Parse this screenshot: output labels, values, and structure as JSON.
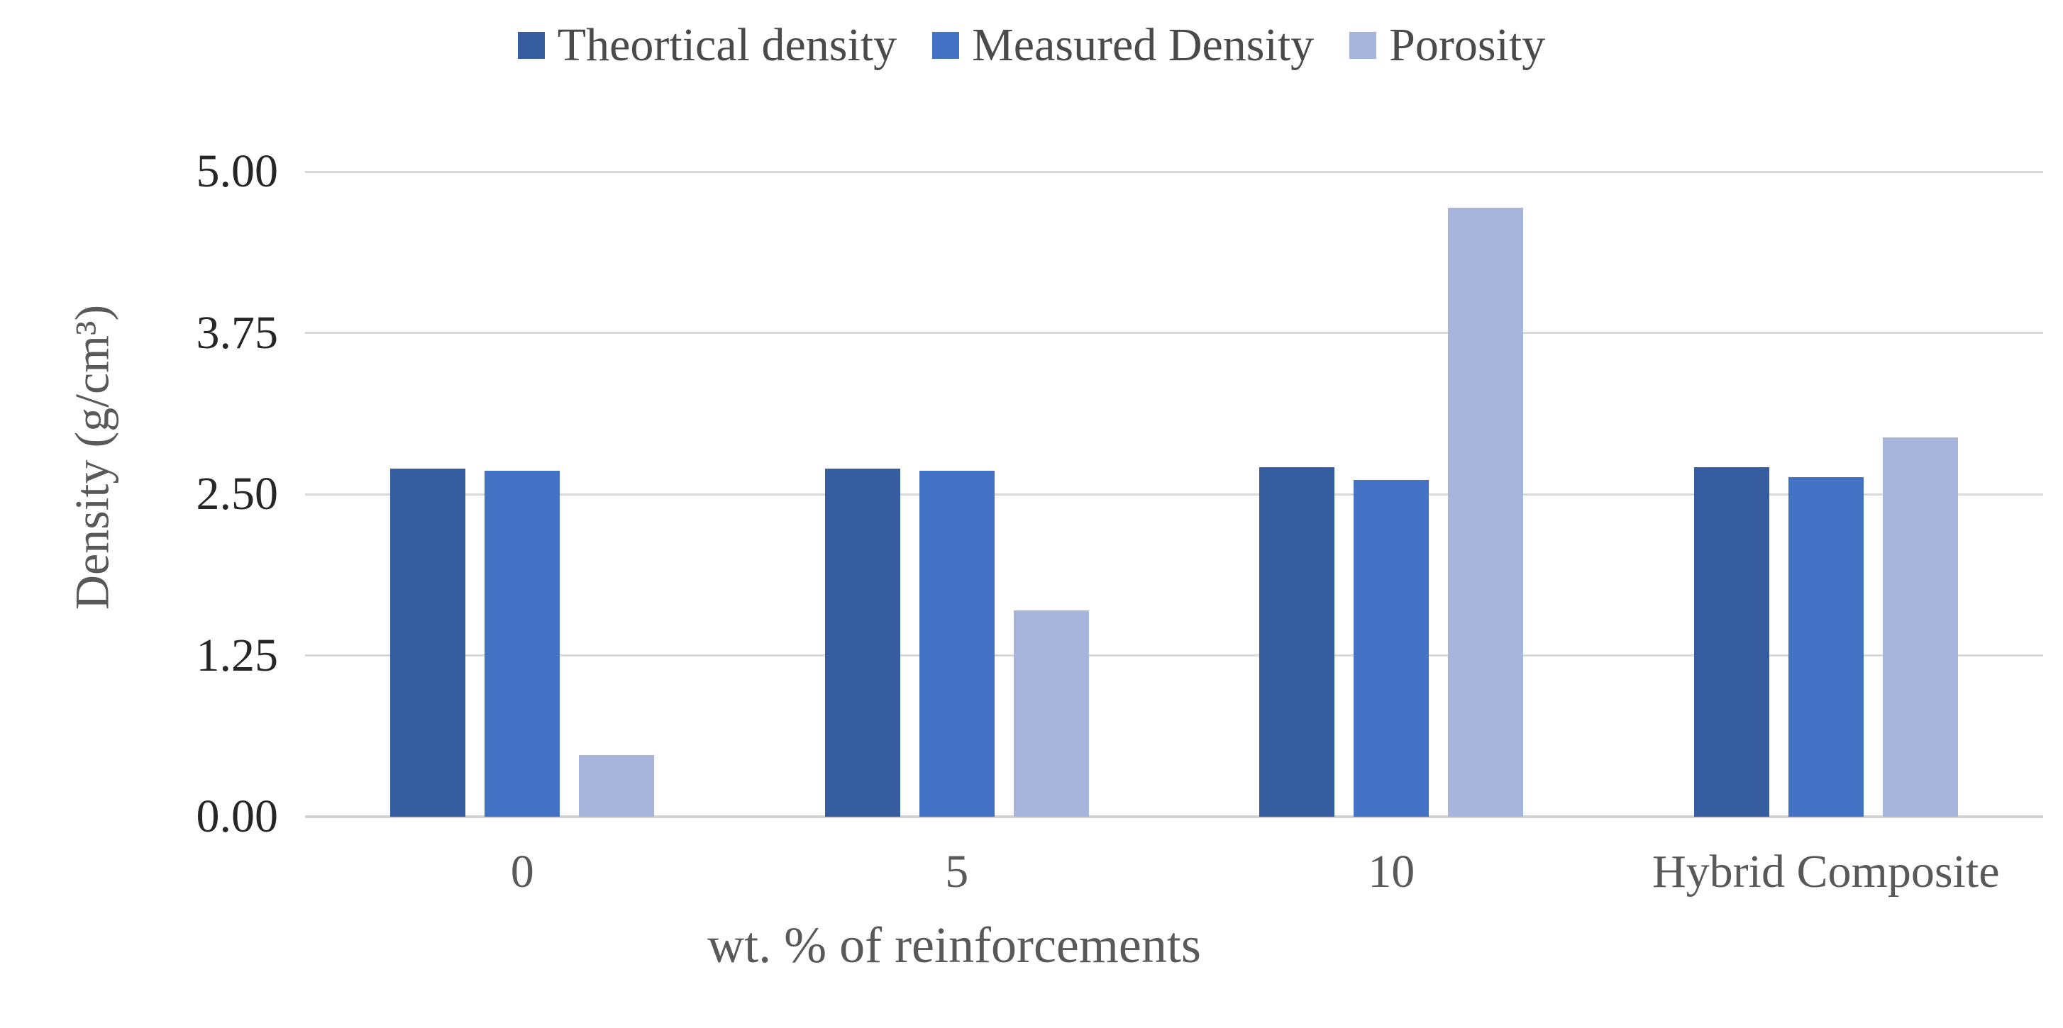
{
  "chart_data": {
    "type": "bar",
    "title": "",
    "categories": [
      "0",
      "5",
      "10",
      "Hybrid Composite"
    ],
    "series": [
      {
        "name": "Theortical density",
        "color": "#365DA0",
        "values": [
          2.7,
          2.7,
          2.71,
          2.71
        ]
      },
      {
        "name": "Measured Density",
        "color": "#4473C5",
        "values": [
          2.68,
          2.68,
          2.61,
          2.63
        ]
      },
      {
        "name": "Porosity",
        "color": "#A7B4DC",
        "values": [
          0.48,
          1.6,
          4.72,
          2.94
        ]
      }
    ],
    "xlabel": "wt. % of reinforcements",
    "ylabel": "Density (g/cm³)",
    "ylim": [
      0,
      5
    ],
    "yticks": [
      {
        "value": 0,
        "label": "0.00"
      },
      {
        "value": 1.25,
        "label": "1.25"
      },
      {
        "value": 2.5,
        "label": "2.50"
      },
      {
        "value": 3.75,
        "label": "3.75"
      },
      {
        "value": 5,
        "label": "5.00"
      }
    ],
    "grid": true,
    "legend_position": "top",
    "colors": {
      "background": "#FFFFFF",
      "gridline": "#D9D9D9",
      "axis_line": "#D2D2D2",
      "ytick_text": "#262626",
      "xtick_text": "#595959",
      "axis_title_text": "#595959",
      "legend_text": "#4A4A4A"
    }
  }
}
